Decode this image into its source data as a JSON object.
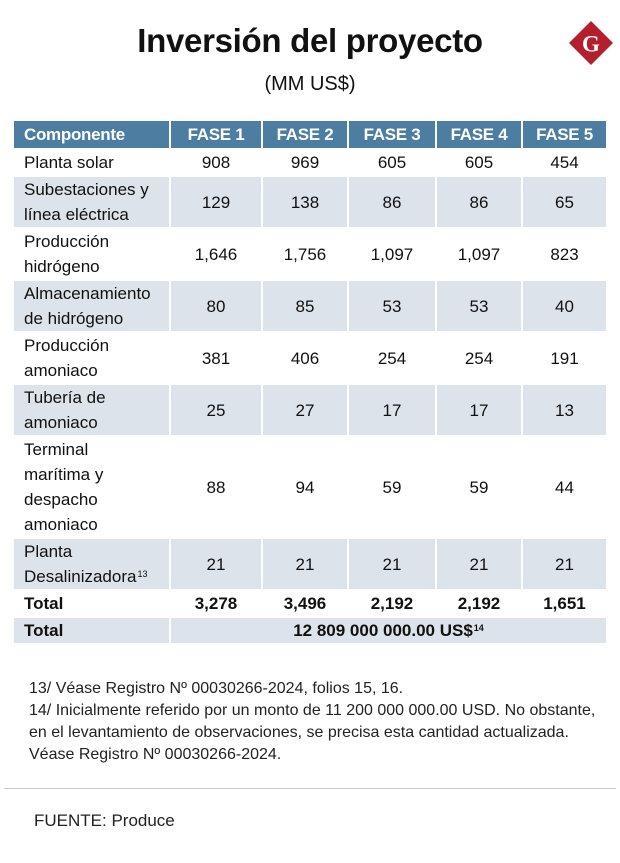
{
  "title": "Inversión del proyecto",
  "subtitle": "(MM US$)",
  "logo": {
    "letter": "G",
    "color": "#b41f2e"
  },
  "table": {
    "headers": [
      "Componente",
      "FASE 1",
      "FASE 2",
      "FASE 3",
      "FASE 4",
      "FASE 5"
    ],
    "rows": [
      {
        "label": "Planta solar",
        "values": [
          "908",
          "969",
          "605",
          "605",
          "454"
        ]
      },
      {
        "label_lines": [
          "Subestaciones y",
          "línea eléctrica"
        ],
        "values": [
          "129",
          "138",
          "86",
          "86",
          "65"
        ]
      },
      {
        "label_lines": [
          "Producción",
          "hidrógeno"
        ],
        "values": [
          "1,646",
          "1,756",
          "1,097",
          "1,097",
          "823"
        ]
      },
      {
        "label_lines": [
          "Almacenamiento",
          "de hidrógeno"
        ],
        "values": [
          "80",
          "85",
          "53",
          "53",
          "40"
        ]
      },
      {
        "label_lines": [
          "Producción",
          "amoniaco"
        ],
        "values": [
          "381",
          "406",
          "254",
          "254",
          "191"
        ]
      },
      {
        "label_lines": [
          "Tubería de",
          "amoniaco"
        ],
        "values": [
          "25",
          "27",
          "17",
          "17",
          "13"
        ]
      },
      {
        "label_lines": [
          "Terminal",
          "marítima y",
          "despacho",
          "amoniaco"
        ],
        "values": [
          "88",
          "94",
          "59",
          "59",
          "44"
        ]
      },
      {
        "label_lines": [
          "Planta",
          "Desalinizadora"
        ],
        "label_sup": "13",
        "values": [
          "21",
          "21",
          "21",
          "21",
          "21"
        ]
      }
    ],
    "total_row": {
      "label": "Total",
      "values": [
        "3,278",
        "3,496",
        "2,192",
        "2,192",
        "1,651"
      ]
    },
    "grand_total": {
      "label": "Total",
      "value": "12 809 000 000.00 US$",
      "sup": "14"
    }
  },
  "notes": [
    "13/ Véase Registro Nº 00030266-2024, folios 15, 16.",
    "14/ Inicialmente referido por un monto de 11 200 000 000.00 USD. No obstante, en el levantamiento de observaciones, se precisa esta cantidad actualizada. Véase Registro Nº 00030266-2024."
  ],
  "source": "FUENTE: Produce",
  "colors": {
    "header_bg": "#4d7da0",
    "shade_bg": "#dde3ea"
  }
}
